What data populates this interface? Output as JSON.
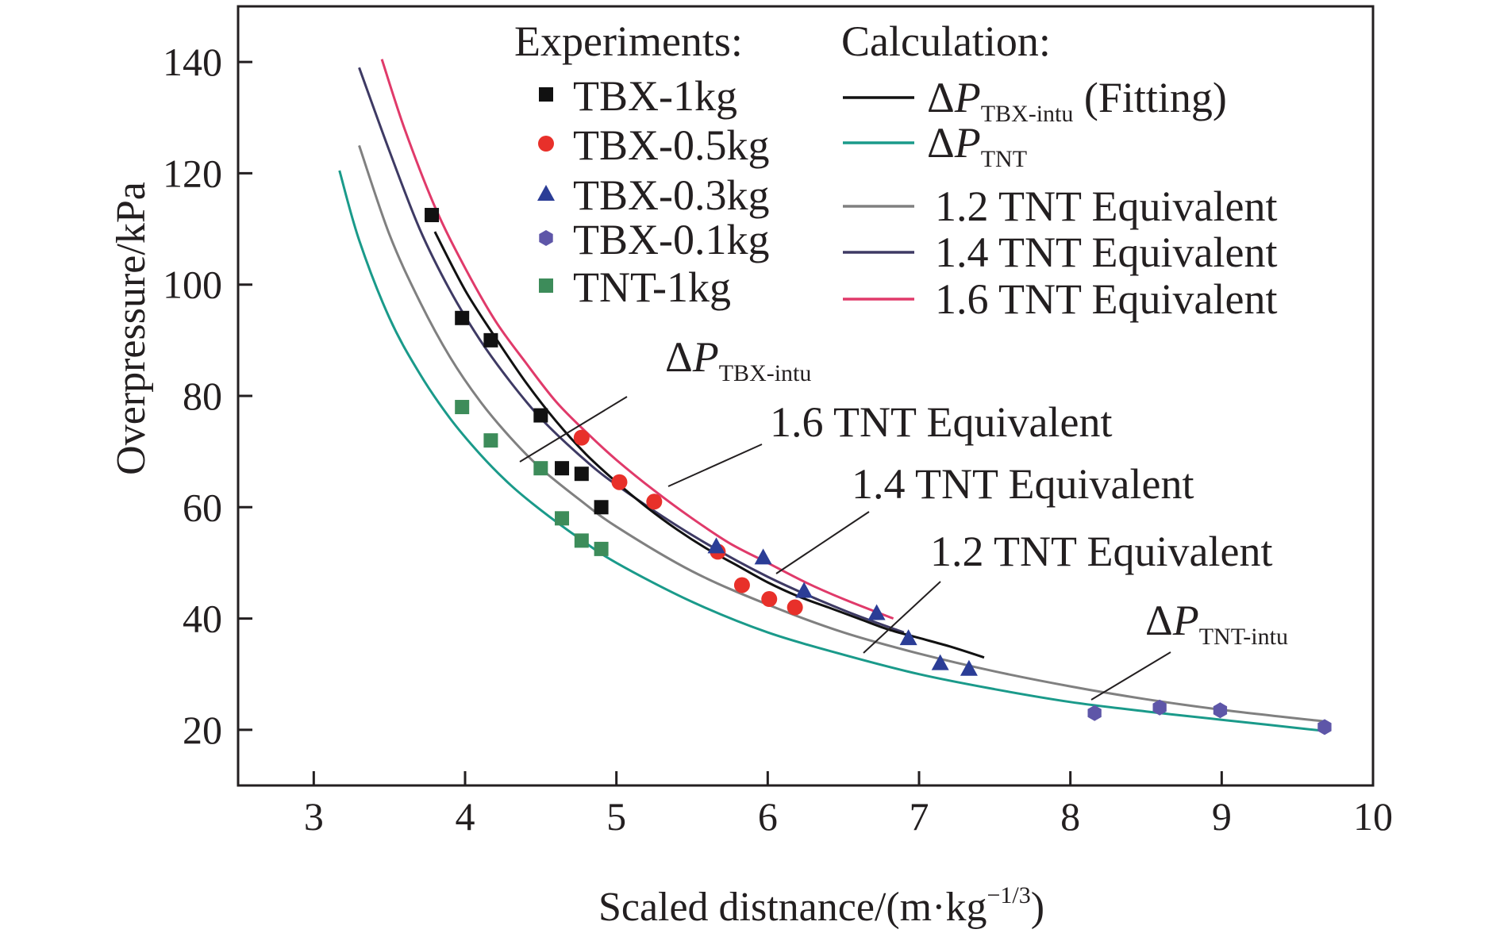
{
  "chart_data": {
    "type": "scatter",
    "xlabel_main": "Scaled distnance/(m·kg",
    "xlabel_sup": "−1/3",
    "xlabel_close": ")",
    "ylabel": "Overpressure/kPa",
    "xlim": [
      2.5,
      10
    ],
    "ylim": [
      10,
      150
    ],
    "xticks": [
      3,
      4,
      5,
      6,
      7,
      8,
      9,
      10
    ],
    "yticks": [
      20,
      40,
      60,
      80,
      100,
      120,
      140
    ],
    "grid": false,
    "legend_experiments_title": "Experiments:",
    "legend_calculation_title": "Calculation:",
    "experiments": [
      {
        "name": "TBX-1kg",
        "marker": "square",
        "color": "#111111",
        "x": [
          3.78,
          3.98,
          4.17,
          4.5,
          4.64,
          4.77,
          4.9
        ],
        "y": [
          112.5,
          94,
          90,
          76.5,
          67,
          66,
          60
        ]
      },
      {
        "name": "TBX-0.5kg",
        "marker": "circle",
        "color": "#e8302a",
        "x": [
          4.77,
          5.02,
          5.25,
          5.67,
          5.83,
          6.01,
          6.18
        ],
        "y": [
          72.5,
          64.5,
          61,
          52,
          46,
          43.5,
          42
        ]
      },
      {
        "name": "TBX-0.3kg",
        "marker": "triangle",
        "color": "#2b3d96",
        "x": [
          5.66,
          5.97,
          6.24,
          6.72,
          6.93,
          7.14,
          7.33
        ],
        "y": [
          53,
          51,
          45,
          41,
          36.5,
          32,
          31
        ]
      },
      {
        "name": "TBX-0.1kg",
        "marker": "hexagon",
        "color": "#5e56a8",
        "x": [
          8.16,
          8.59,
          8.99,
          9.68
        ],
        "y": [
          23,
          24,
          23.5,
          20.5
        ]
      },
      {
        "name": "TNT-1kg",
        "marker": "square",
        "color": "#3d8c5a",
        "x": [
          3.98,
          4.17,
          4.5,
          4.64,
          4.77,
          4.9
        ],
        "y": [
          78,
          72,
          67,
          58,
          54,
          52.5
        ]
      }
    ],
    "calculations": [
      {
        "name_main": "ΔP",
        "name_sub": "TBX-intu",
        "name_suffix": " (Fitting)",
        "color": "#111111",
        "width": 3,
        "x": [
          3.8,
          4.0,
          4.2,
          4.4,
          4.6,
          4.8,
          5.0,
          5.2,
          5.4,
          5.6,
          5.8,
          6.0,
          6.2,
          6.4,
          6.6,
          6.8,
          7.0,
          7.2,
          7.43
        ],
        "y": [
          109.5,
          99,
          90.5,
          82.5,
          75.5,
          69.5,
          64.5,
          60,
          56,
          52.5,
          49.5,
          46.5,
          44,
          42,
          40,
          38,
          36.5,
          35,
          33
        ]
      },
      {
        "name_main": "ΔP",
        "name_sub": "TNT",
        "name_suffix": "",
        "color": "#1a9a8a",
        "width": 3,
        "x": [
          3.17,
          3.3,
          3.5,
          3.7,
          3.9,
          4.1,
          4.3,
          4.5,
          4.75,
          5.0,
          5.5,
          6.0,
          6.5,
          7.0,
          7.5,
          8.0,
          8.5,
          9.0,
          9.68
        ],
        "y": [
          120.5,
          108,
          94,
          84,
          76,
          69.5,
          64,
          59.5,
          54.5,
          50,
          43,
          37.5,
          33.5,
          30,
          27.3,
          25,
          23.3,
          21.8,
          19.8
        ]
      },
      {
        "name_main": "",
        "name_sub": "",
        "name_suffix": "1.2 TNT Equivalent",
        "color": "#808080",
        "width": 3,
        "x": [
          3.3,
          3.5,
          3.7,
          3.9,
          4.1,
          4.3,
          4.5,
          4.75,
          5.0,
          5.5,
          6.0,
          6.5,
          7.0,
          7.5,
          8.0,
          8.5,
          9.0,
          9.68
        ],
        "y": [
          125,
          109,
          97,
          87,
          79,
          72.5,
          67,
          61.5,
          56.5,
          48.5,
          42.5,
          37.5,
          33.7,
          30.5,
          27.8,
          25.5,
          23.6,
          21.5
        ]
      },
      {
        "name_main": "",
        "name_sub": "",
        "name_suffix": "1.4 TNT Equivalent",
        "color": "#3e3a64",
        "width": 3,
        "x": [
          3.3,
          3.5,
          3.7,
          3.9,
          4.1,
          4.3,
          4.5,
          4.75,
          5.0,
          5.5,
          6.0,
          6.5,
          6.9
        ],
        "y": [
          139,
          124,
          110,
          99,
          90,
          82.5,
          76,
          69.5,
          64,
          55,
          47.5,
          41.5,
          37.5
        ]
      },
      {
        "name_main": "",
        "name_sub": "",
        "name_suffix": "1.6 TNT Equivalent",
        "color": "#e03a6a",
        "width": 3,
        "x": [
          3.45,
          3.6,
          3.8,
          4.0,
          4.2,
          4.4,
          4.6,
          4.8,
          5.0,
          5.25,
          5.5,
          5.75,
          6.0,
          6.25,
          6.5,
          6.83
        ],
        "y": [
          140.5,
          128,
          114,
          103,
          93.5,
          86,
          79,
          73.5,
          68.5,
          63,
          58,
          53.5,
          50,
          46.5,
          43.5,
          40
        ]
      }
    ],
    "annotations": [
      {
        "text_main": "ΔP",
        "text_sub": "TBX-intu",
        "text_suffix": ""
      },
      {
        "text_main": "",
        "text_sub": "",
        "text_suffix": "1.6 TNT Equivalent"
      },
      {
        "text_main": "",
        "text_sub": "",
        "text_suffix": "1.4 TNT Equivalent"
      },
      {
        "text_main": "",
        "text_sub": "",
        "text_suffix": "1.2 TNT Equivalent"
      },
      {
        "text_main": "ΔP",
        "text_sub": "TNT-intu",
        "text_suffix": ""
      }
    ]
  }
}
